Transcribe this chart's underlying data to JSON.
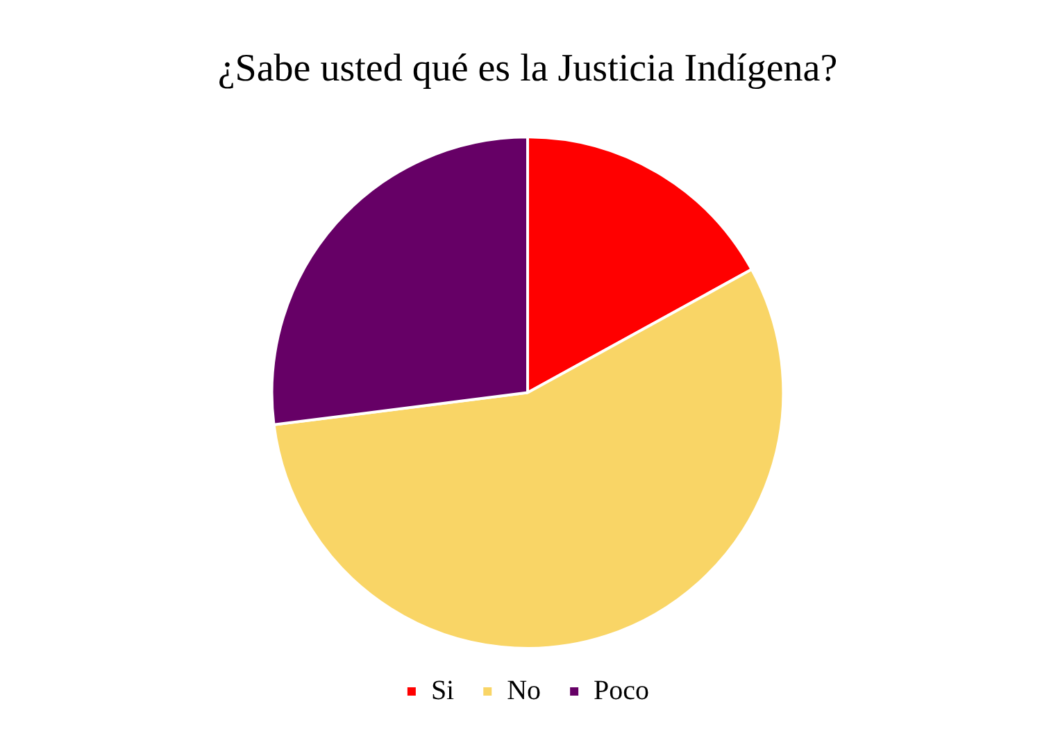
{
  "chart_data": {
    "type": "pie",
    "title": "¿Sabe usted qué es la Justicia Indígena?",
    "categories": [
      "Si",
      "No",
      "Poco"
    ],
    "values": [
      17,
      56,
      27
    ],
    "colors": [
      "#ff0000",
      "#f9d566",
      "#660066"
    ],
    "legend": "bottom"
  }
}
